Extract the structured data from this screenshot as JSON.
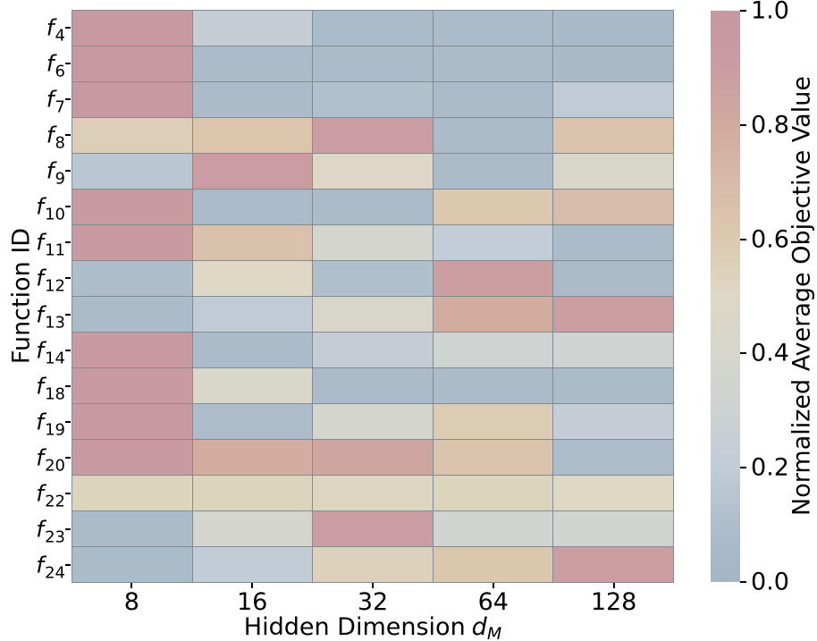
{
  "figure": {
    "background": "#ffffff",
    "gridline_color": "#828a92"
  },
  "chart_data": {
    "type": "heatmap",
    "title": "",
    "xlabel": {
      "text": "Hidden Dimension",
      "var": "d",
      "sub": "M"
    },
    "ylabel": "Function ID",
    "x_categories": [
      "8",
      "16",
      "32",
      "64",
      "128"
    ],
    "y_categories": [
      "f4",
      "f6",
      "f7",
      "f8",
      "f9",
      "f10",
      "f11",
      "f12",
      "f13",
      "f14",
      "f18",
      "f19",
      "f20",
      "f22",
      "f23",
      "f24"
    ],
    "values": [
      [
        0.96,
        0.24,
        0.07,
        0.07,
        0.06
      ],
      [
        0.96,
        0.08,
        0.08,
        0.08,
        0.06
      ],
      [
        0.96,
        0.08,
        0.12,
        0.08,
        0.19
      ],
      [
        0.56,
        0.63,
        0.9,
        0.08,
        0.64
      ],
      [
        0.16,
        0.9,
        0.47,
        0.08,
        0.44
      ],
      [
        0.94,
        0.08,
        0.08,
        0.61,
        0.69
      ],
      [
        0.94,
        0.66,
        0.38,
        0.21,
        0.08
      ],
      [
        0.1,
        0.5,
        0.11,
        0.89,
        0.08
      ],
      [
        0.07,
        0.19,
        0.42,
        0.79,
        0.89
      ],
      [
        0.95,
        0.08,
        0.22,
        0.32,
        0.32
      ],
      [
        0.95,
        0.44,
        0.08,
        0.08,
        0.07
      ],
      [
        0.95,
        0.09,
        0.38,
        0.58,
        0.22
      ],
      [
        0.95,
        0.78,
        0.83,
        0.64,
        0.09
      ],
      [
        0.53,
        0.53,
        0.52,
        0.53,
        0.5
      ],
      [
        0.08,
        0.37,
        0.9,
        0.34,
        0.34
      ],
      [
        0.07,
        0.2,
        0.55,
        0.62,
        0.89
      ]
    ],
    "value_range": [
      0.0,
      1.0
    ],
    "grid": true,
    "legend_position": "right-colorbar",
    "colorbar": {
      "label": "Normalized Average Objective Value",
      "ticks": [
        "1.0",
        "0.8",
        "0.6",
        "0.4",
        "0.2",
        "0.0"
      ],
      "min": 0.0,
      "max": 1.0
    },
    "colormap_stops": [
      {
        "v": 0.0,
        "c": "#a3b5c6"
      },
      {
        "v": 0.1,
        "c": "#adbdcb"
      },
      {
        "v": 0.2,
        "c": "#c2ccd7"
      },
      {
        "v": 0.3,
        "c": "#cdd2d2"
      },
      {
        "v": 0.4,
        "c": "#d6d6cc"
      },
      {
        "v": 0.5,
        "c": "#ded8c4"
      },
      {
        "v": 0.6,
        "c": "#dcc9af"
      },
      {
        "v": 0.7,
        "c": "#d7bba9"
      },
      {
        "v": 0.8,
        "c": "#d1aa9e"
      },
      {
        "v": 0.9,
        "c": "#ca9da2"
      },
      {
        "v": 1.0,
        "c": "#c6979f"
      }
    ]
  }
}
